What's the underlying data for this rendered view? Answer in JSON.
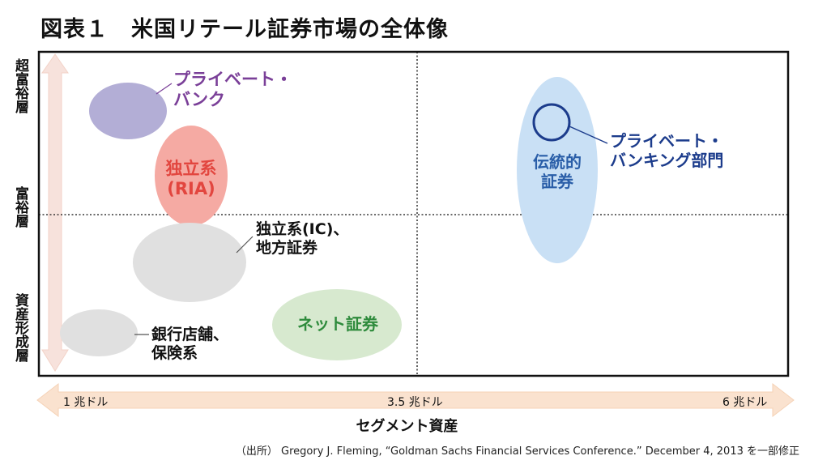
{
  "title": "図表１　米国リテール証券市場の全体像",
  "y_axis": {
    "top": "超富裕層",
    "middle": "富裕層",
    "bottom": "資産形成層"
  },
  "x_axis": {
    "title": "セグメント資産",
    "ticks": [
      "1 兆ドル",
      "3.5 兆ドル",
      "6 兆ドル"
    ]
  },
  "segments": {
    "private_bank": "プライベート・\nバンク",
    "ria": "独立系\n(RIA)",
    "ic": "独立系(IC)、\n地方証券",
    "online": "ネット証券",
    "bank": "銀行店舗、\n保険系",
    "traditional": "伝統的\n証券",
    "pb_division": "プライベート・\nバンキング部門"
  },
  "colors": {
    "private_bank": "#b3aed6",
    "private_bank_text": "#7a3f98",
    "ria": "#f5aaa3",
    "ria_text": "#e2463f",
    "gray": "#e0e0e0",
    "online": "#d7e9cf",
    "online_text": "#2e8b3c",
    "traditional": "#c9e0f5",
    "traditional_text": "#2a5ea8",
    "pb_division_text": "#1c3c8c",
    "arrow": "#f7e2dc",
    "x_arrow": "#fae2cf"
  },
  "source": "（出所） Gregory J. Fleming, “Goldman Sachs Financial Services Conference.” December 4, 2013 を一部修正"
}
